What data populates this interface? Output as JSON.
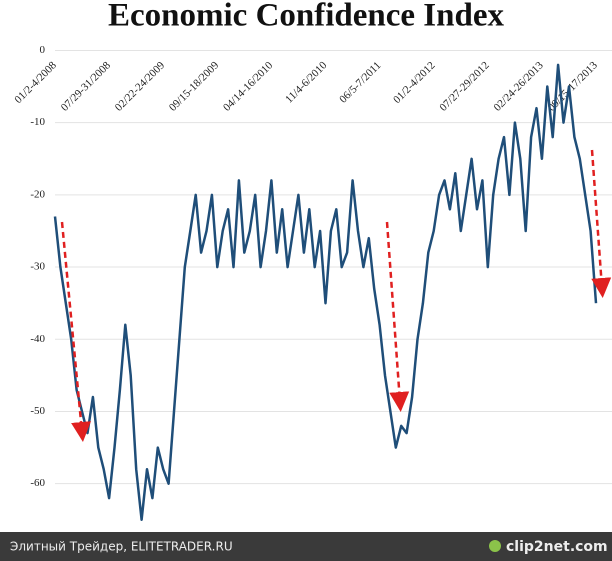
{
  "chart_data": {
    "type": "line",
    "title": "Economic Confidence Index",
    "categories": [
      "01/2-4/2008",
      null,
      null,
      null,
      null,
      null,
      null,
      null,
      null,
      null,
      "07/29-31/2008",
      null,
      null,
      null,
      null,
      null,
      null,
      null,
      null,
      null,
      "02/22-24/2009",
      null,
      null,
      null,
      null,
      null,
      null,
      null,
      null,
      null,
      "09/15-18/2009",
      null,
      null,
      null,
      null,
      null,
      null,
      null,
      null,
      null,
      "04/14-16/2010",
      null,
      null,
      null,
      null,
      null,
      null,
      null,
      null,
      null,
      "11/4-6/2010",
      null,
      null,
      null,
      null,
      null,
      null,
      null,
      null,
      null,
      "06/5-7/2011",
      null,
      null,
      null,
      null,
      null,
      null,
      null,
      null,
      null,
      "01/2-4/2012",
      null,
      null,
      null,
      null,
      null,
      null,
      null,
      null,
      null,
      "07/27-29/2012",
      null,
      null,
      null,
      null,
      null,
      null,
      null,
      null,
      null,
      "02/24-26/2013",
      null,
      null,
      null,
      null,
      null,
      null,
      null,
      null,
      null,
      "09/15-17/2013"
    ],
    "series": [
      {
        "color": "#1f4e79",
        "values": [
          -23,
          -30,
          -35,
          -40,
          -47,
          -50,
          -53,
          -48,
          -55,
          -58,
          -62,
          -55,
          -47,
          -38,
          -45,
          -58,
          -65,
          -58,
          -62,
          -55,
          -58,
          -60,
          -50,
          -40,
          -30,
          -25,
          -20,
          -28,
          -25,
          -20,
          -30,
          -25,
          -22,
          -30,
          -18,
          -28,
          -25,
          -20,
          -30,
          -25,
          -18,
          -28,
          -22,
          -30,
          -25,
          -20,
          -28,
          -22,
          -30,
          -25,
          -35,
          -25,
          -22,
          -30,
          -28,
          -18,
          -25,
          -30,
          -26,
          -33,
          -38,
          -45,
          -50,
          -55,
          -52,
          -53,
          -48,
          -40,
          -35,
          -28,
          -25,
          -20,
          -18,
          -22,
          -17,
          -25,
          -20,
          -15,
          -22,
          -18,
          -30,
          -20,
          -15,
          -12,
          -20,
          -10,
          -15,
          -25,
          -12,
          -8,
          -15,
          -5,
          -12,
          -2,
          -10,
          -5,
          -12,
          -15,
          -20,
          -25,
          -35
        ]
      }
    ],
    "ylim": [
      -66,
      2
    ],
    "yticks": [
      0,
      -10,
      -20,
      -30,
      -40,
      -50,
      -60
    ],
    "grid": true
  },
  "footer": {
    "left": "Элитный Трейдер, ELITETRADER.RU",
    "right": "clip2net.com"
  }
}
